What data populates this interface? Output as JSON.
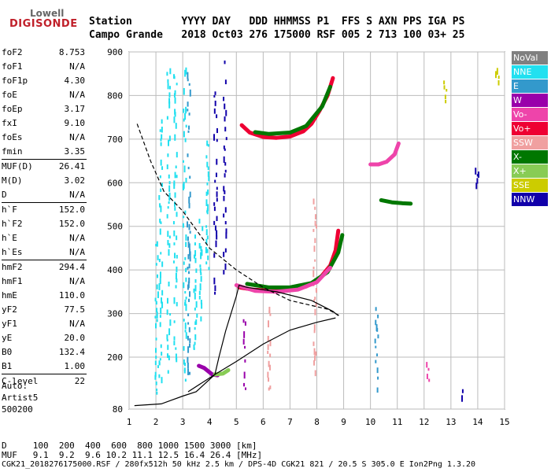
{
  "logo": {
    "top": "Lowell",
    "bottom": "DIGISONDE"
  },
  "header": {
    "row1": "Station        YYYY DAY   DDD HHMMSS P1  FFS S AXN PPS IGA PS",
    "row2": "Campo Grande   2018 Oct03 276 175000 RSF 005 2 713 100 03+ 25"
  },
  "params": [
    [
      {
        "k": "foF2",
        "v": "8.753"
      },
      {
        "k": "foF1",
        "v": "N/A"
      },
      {
        "k": "foF1p",
        "v": "4.30"
      },
      {
        "k": "foE",
        "v": "N/A"
      },
      {
        "k": "foEp",
        "v": "3.17"
      },
      {
        "k": "fxI",
        "v": "9.10"
      },
      {
        "k": "foEs",
        "v": "N/A"
      },
      {
        "k": "fmin",
        "v": "3.35"
      }
    ],
    [
      {
        "k": "MUF(D)",
        "v": "26.41"
      },
      {
        "k": "M(D)",
        "v": "3.02"
      },
      {
        "k": "D",
        "v": "N/A"
      }
    ],
    [
      {
        "k": "h`F",
        "v": "152.0"
      },
      {
        "k": "h`F2",
        "v": "152.0"
      },
      {
        "k": "h`E",
        "v": "N/A"
      },
      {
        "k": "h`Es",
        "v": "N/A"
      }
    ],
    [
      {
        "k": "hmF2",
        "v": "294.4"
      },
      {
        "k": "hmF1",
        "v": "N/A"
      },
      {
        "k": "hmE",
        "v": "110.0"
      },
      {
        "k": "yF2",
        "v": "77.5"
      },
      {
        "k": "yF1",
        "v": "N/A"
      },
      {
        "k": "yE",
        "v": "20.0"
      },
      {
        "k": "B0",
        "v": "132.4"
      },
      {
        "k": "B1",
        "v": "1.00"
      }
    ],
    [
      {
        "k": "C-level",
        "v": "22"
      }
    ]
  ],
  "auto": {
    "line1": "Auto:",
    "line2": "Artist5",
    "line3": "500200"
  },
  "legend": [
    {
      "label": "NoVal",
      "color": "#808080"
    },
    {
      "label": "NNE",
      "color": "#22e0f0"
    },
    {
      "label": "E",
      "color": "#3399cc"
    },
    {
      "label": "W",
      "color": "#9900aa"
    },
    {
      "label": "Vo-",
      "color": "#ee44aa"
    },
    {
      "label": "Vo+",
      "color": "#ee0033"
    },
    {
      "label": "SSW",
      "color": "#f0a0a0"
    },
    {
      "label": "X-",
      "color": "#007700"
    },
    {
      "label": "X+",
      "color": "#88cc55"
    },
    {
      "label": "SSE",
      "color": "#cccc00"
    },
    {
      "label": "NNW",
      "color": "#1100aa"
    }
  ],
  "footer": {
    "d_row": "D     100  200  400  600  800 1000 1500 3000 [km]",
    "muf_row": "MUF   9.1  9.2  9.6 10.2 11.1 12.5 16.4 26.4 [MHz]",
    "file_row": "CGK21_2018276175000.RSF / 280fx512h 50 kHz 2.5 km / DPS-4D CGK21 821 / 20.5 S 305.0 E Ion2Png 1.3.20"
  },
  "chart_data": {
    "type": "scatter",
    "x_ticks": [
      "1",
      "2",
      "3",
      "4",
      "5",
      "6",
      "7",
      "8",
      "9",
      "10",
      "11",
      "12",
      "13",
      "14",
      "15"
    ],
    "y_ticks": [
      "80",
      "200",
      "300",
      "400",
      "500",
      "600",
      "700",
      "800",
      "900"
    ],
    "xlim": [
      1,
      15
    ],
    "ylim": [
      80,
      900
    ],
    "grid": true,
    "traces": [
      {
        "color": "#ee0033",
        "points": [
          [
            5.2,
            732
          ],
          [
            5.5,
            715
          ],
          [
            6,
            705
          ],
          [
            6.5,
            703
          ],
          [
            7,
            706
          ],
          [
            7.5,
            718
          ],
          [
            7.8,
            735
          ],
          [
            8.1,
            765
          ],
          [
            8.4,
            800
          ],
          [
            8.6,
            840
          ]
        ]
      },
      {
        "color": "#007700",
        "points": [
          [
            5.7,
            716
          ],
          [
            6.2,
            712
          ],
          [
            7,
            715
          ],
          [
            7.6,
            730
          ],
          [
            8.2,
            775
          ],
          [
            8.5,
            820
          ]
        ]
      },
      {
        "color": "#ee44aa",
        "points": [
          [
            10,
            642
          ],
          [
            10.3,
            642
          ],
          [
            10.6,
            648
          ],
          [
            10.9,
            665
          ],
          [
            11.05,
            690
          ]
        ]
      },
      {
        "color": "#007700",
        "points": [
          [
            10.4,
            560
          ],
          [
            10.8,
            555
          ],
          [
            11.2,
            553
          ],
          [
            11.5,
            552
          ]
        ]
      },
      {
        "color": "#ee0033",
        "points": [
          [
            5.1,
            360
          ],
          [
            5.6,
            355
          ],
          [
            6.3,
            352
          ],
          [
            7,
            354
          ],
          [
            7.6,
            362
          ],
          [
            8.1,
            380
          ],
          [
            8.5,
            410
          ],
          [
            8.7,
            445
          ],
          [
            8.8,
            490
          ]
        ]
      },
      {
        "color": "#007700",
        "points": [
          [
            5.4,
            368
          ],
          [
            6.2,
            360
          ],
          [
            7,
            360
          ],
          [
            7.8,
            370
          ],
          [
            8.4,
            395
          ],
          [
            8.8,
            440
          ],
          [
            8.95,
            480
          ]
        ]
      },
      {
        "color": "#ee44aa",
        "points": [
          [
            5.0,
            365
          ],
          [
            5.7,
            352
          ],
          [
            6.5,
            350
          ],
          [
            7.3,
            355
          ],
          [
            8,
            372
          ],
          [
            8.5,
            405
          ]
        ]
      },
      {
        "color": "#9900aa",
        "points": [
          [
            3.6,
            180
          ],
          [
            3.8,
            175
          ],
          [
            4.1,
            160
          ],
          [
            4.3,
            158
          ]
        ]
      },
      {
        "color": "#88cc55",
        "points": [
          [
            4.2,
            160
          ],
          [
            4.5,
            162
          ],
          [
            4.7,
            170
          ]
        ]
      }
    ],
    "curves": [
      {
        "style": "dashed",
        "points": [
          [
            1.3,
            735
          ],
          [
            1.8,
            650
          ],
          [
            2.3,
            580
          ],
          [
            3,
            535
          ],
          [
            4,
            450
          ],
          [
            5,
            400
          ],
          [
            6,
            360
          ],
          [
            7,
            330
          ],
          [
            8.4,
            310
          ],
          [
            8.85,
            295
          ]
        ]
      },
      {
        "style": "solid",
        "points": [
          [
            1.2,
            88
          ],
          [
            2.2,
            92
          ],
          [
            3,
            110
          ],
          [
            3.5,
            120
          ],
          [
            4.2,
            160
          ],
          [
            4.35,
            200
          ],
          [
            4.6,
            260
          ],
          [
            5.0,
            340
          ],
          [
            5.1,
            365
          ],
          [
            5.4,
            360
          ],
          [
            6.5,
            350
          ],
          [
            7.8,
            330
          ],
          [
            8.6,
            305
          ],
          [
            8.8,
            295
          ]
        ]
      },
      {
        "style": "solid",
        "points": [
          [
            3.2,
            120
          ],
          [
            4.2,
            160
          ],
          [
            5,
            190
          ],
          [
            6,
            230
          ],
          [
            7,
            262
          ],
          [
            8,
            280
          ],
          [
            8.7,
            290
          ]
        ]
      }
    ],
    "scatter_columns": [
      {
        "x": 2.0,
        "y0": 120,
        "y1": 500,
        "color": "#22e0f0"
      },
      {
        "x": 2.15,
        "y0": 150,
        "y1": 750,
        "color": "#22e0f0"
      },
      {
        "x": 2.45,
        "y0": 170,
        "y1": 880,
        "color": "#22e0f0"
      },
      {
        "x": 2.7,
        "y0": 200,
        "y1": 850,
        "color": "#22e0f0"
      },
      {
        "x": 3.05,
        "y0": 150,
        "y1": 870,
        "color": "#22e0f0"
      },
      {
        "x": 3.2,
        "y0": 150,
        "y1": 860,
        "color": "#3399cc"
      },
      {
        "x": 3.45,
        "y0": 200,
        "y1": 500,
        "color": "#22e0f0"
      },
      {
        "x": 3.65,
        "y0": 280,
        "y1": 520,
        "color": "#22e0f0"
      },
      {
        "x": 3.9,
        "y0": 380,
        "y1": 700,
        "color": "#22e0f0"
      },
      {
        "x": 4.2,
        "y0": 350,
        "y1": 860,
        "color": "#1100aa"
      },
      {
        "x": 4.55,
        "y0": 400,
        "y1": 900,
        "color": "#1100aa"
      },
      {
        "x": 5.3,
        "y0": 130,
        "y1": 300,
        "color": "#9900aa"
      },
      {
        "x": 6.2,
        "y0": 130,
        "y1": 330,
        "color": "#f0a0a0"
      },
      {
        "x": 7.9,
        "y0": 170,
        "y1": 580,
        "color": "#f0a0a0"
      },
      {
        "x": 10.2,
        "y0": 130,
        "y1": 330,
        "color": "#3399cc"
      },
      {
        "x": 12.1,
        "y0": 150,
        "y1": 220,
        "color": "#ee44aa"
      },
      {
        "x": 13.4,
        "y0": 100,
        "y1": 160,
        "color": "#1100aa"
      },
      {
        "x": 12.75,
        "y0": 790,
        "y1": 860,
        "color": "#cccc00"
      },
      {
        "x": 14.7,
        "y0": 800,
        "y1": 880,
        "color": "#cccc00"
      },
      {
        "x": 13.95,
        "y0": 600,
        "y1": 650,
        "color": "#1100aa"
      }
    ]
  }
}
